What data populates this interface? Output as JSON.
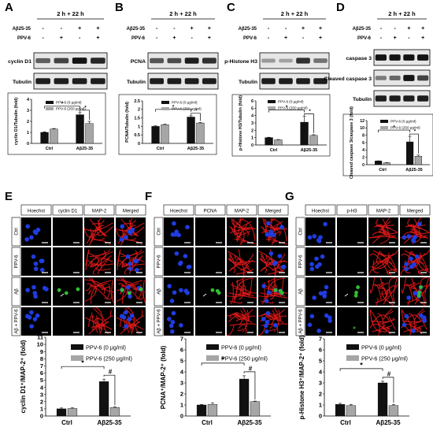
{
  "panel_letters": [
    "A",
    "B",
    "C",
    "D",
    "E",
    "F",
    "G"
  ],
  "blots": [
    {
      "timepoint": "2 h + 22 h",
      "treat_labels": [
        "Aβ25-35",
        "PPV-6"
      ],
      "signs": [
        [
          "-",
          "-",
          "+",
          "+"
        ],
        [
          "-",
          "+",
          "-",
          "+"
        ]
      ],
      "rows": [
        {
          "label": "cyclin D1",
          "intensity": [
            0.55,
            0.7,
            0.95,
            0.85
          ]
        },
        {
          "label": "Tubulin",
          "intensity": [
            0.9,
            0.9,
            0.9,
            0.9
          ]
        }
      ]
    },
    {
      "timepoint": "2 h + 22 h",
      "treat_labels": [
        "Aβ25-35",
        "PPV-6"
      ],
      "signs": [
        [
          "-",
          "-",
          "+",
          "+"
        ],
        [
          "-",
          "+",
          "-",
          "+"
        ]
      ],
      "rows": [
        {
          "label": "PCNA",
          "intensity": [
            0.6,
            0.65,
            0.9,
            0.8
          ]
        },
        {
          "label": "Tubulin",
          "intensity": [
            0.9,
            0.9,
            0.9,
            0.9
          ]
        }
      ]
    },
    {
      "timepoint": "2 h + 22 h",
      "treat_labels": [
        "Aβ25-35",
        "PPV-6"
      ],
      "signs": [
        [
          "-",
          "-",
          "+",
          "+"
        ],
        [
          "-",
          "+",
          "-",
          "+"
        ]
      ],
      "rows": [
        {
          "label": "p-Histone H3",
          "intensity": [
            0.25,
            0.2,
            0.8,
            0.45
          ]
        },
        {
          "label": "Tubulin",
          "intensity": [
            0.9,
            0.9,
            0.9,
            0.9
          ]
        }
      ]
    },
    {
      "timepoint": "2 h + 22 h",
      "treat_labels": [
        "Aβ25-35",
        "PPV-6"
      ],
      "signs": [
        [
          "-",
          "-",
          "+",
          "+"
        ],
        [
          "-",
          "+",
          "-",
          "+"
        ]
      ],
      "rows": [
        {
          "label": "caspase 3",
          "intensity": [
            0.95,
            0.95,
            0.95,
            0.95
          ]
        },
        {
          "label": "Cleaved caspase 3",
          "intensity": [
            0.4,
            0.5,
            0.95,
            0.7
          ]
        },
        {
          "label": "Tubulin",
          "intensity": [
            0.9,
            0.9,
            0.9,
            0.9
          ]
        }
      ]
    }
  ],
  "micro": [
    {
      "cols": [
        "Hoechst",
        "cyclin D1",
        "MAP-2",
        "Merged"
      ]
    },
    {
      "cols": [
        "Hoechst",
        "PCNA",
        "MAP-2",
        "Merged"
      ]
    },
    {
      "cols": [
        "Hoechst",
        "p-H3",
        "MAP-2",
        "Merged"
      ]
    }
  ],
  "micro_rows": [
    "Ctrl",
    "PPV-6",
    "Aβ",
    "Aβ + PPV-6"
  ],
  "colors": {
    "black_bar": "#111111",
    "gray_bar": "#a6a6a6",
    "nucleus": "#1f3de0",
    "neurite": "#e01818",
    "marker": "#2fbf2f"
  },
  "chart_data": [
    {
      "type": "bar",
      "categories": [
        "Ctrl",
        "Aβ25-35"
      ],
      "series": [
        {
          "name": "PPV-6 (0 μg/ml)",
          "values": [
            1.0,
            2.6
          ],
          "errors": [
            0.05,
            0.2
          ]
        },
        {
          "name": "PPV-6 (250 μg/ml)",
          "values": [
            1.3,
            1.8
          ],
          "errors": [
            0.05,
            0.2
          ]
        }
      ],
      "ylabel": "cyclin D1/Tubulin (fold)",
      "ylim": [
        0,
        4
      ],
      "yticks": [
        "0",
        "1",
        "2",
        "3",
        "4"
      ],
      "sig": [
        {
          "from": [
            0,
            0
          ],
          "to": [
            1,
            0
          ],
          "label": "*"
        },
        {
          "from": [
            1,
            0
          ],
          "to": [
            1,
            1
          ],
          "label": "*"
        }
      ]
    },
    {
      "type": "bar",
      "categories": [
        "Ctrl",
        "Aβ25-35"
      ],
      "series": [
        {
          "name": "PPV-6 (0 μg/ml)",
          "values": [
            1.0,
            1.55
          ],
          "errors": [
            0.03,
            0.08
          ]
        },
        {
          "name": "PPV-6 (250 μg/ml)",
          "values": [
            1.1,
            1.2
          ],
          "errors": [
            0.03,
            0.03
          ]
        }
      ],
      "ylabel": "PCNA/Tubulin (fold)",
      "ylim": [
        0,
        2.5
      ],
      "yticks": [
        "0",
        "0.5",
        "1",
        "1.5",
        "2",
        "2.5"
      ],
      "sig": [
        {
          "from": [
            0,
            0
          ],
          "to": [
            1,
            0
          ],
          "label": "*"
        },
        {
          "from": [
            1,
            0
          ],
          "to": [
            1,
            1
          ],
          "label": "*"
        }
      ]
    },
    {
      "type": "bar",
      "categories": [
        "Ctrl",
        "Aβ25-35"
      ],
      "series": [
        {
          "name": "PPV-6 (0 μg/ml)",
          "values": [
            1.0,
            3.1
          ],
          "errors": [
            0.05,
            0.8
          ]
        },
        {
          "name": "PPV-6 (250 μg/ml)",
          "values": [
            0.7,
            1.3
          ],
          "errors": [
            0.05,
            0.1
          ]
        }
      ],
      "ylabel": "p-Histone H3/Tubulin (fold)",
      "ylim": [
        0,
        6
      ],
      "yticks": [
        "0",
        "1",
        "2",
        "3",
        "4",
        "5",
        "6"
      ],
      "sig": [
        {
          "from": [
            0,
            0
          ],
          "to": [
            1,
            0
          ],
          "label": "*"
        },
        {
          "from": [
            1,
            0
          ],
          "to": [
            1,
            1
          ],
          "label": "*"
        }
      ]
    },
    {
      "type": "bar",
      "categories": [
        "Ctrl",
        "Aβ25-35"
      ],
      "series": [
        {
          "name": "PPV-6 (0 μg/ml)",
          "values": [
            1.0,
            6.2
          ],
          "errors": [
            0.05,
            1.5
          ]
        },
        {
          "name": "PPV-6 (250 μg/ml)",
          "values": [
            0.5,
            2.3
          ],
          "errors": [
            0.05,
            0.3
          ]
        }
      ],
      "ylabel": "Cleaved caspase 3/caspase 3 (fold)",
      "ylim": [
        0,
        12
      ],
      "yticks": [
        "0",
        "2",
        "4",
        "6",
        "8",
        "10",
        "12"
      ],
      "sig": [
        {
          "from": [
            0,
            0
          ],
          "to": [
            1,
            0
          ],
          "label": "*"
        },
        {
          "from": [
            1,
            0
          ],
          "to": [
            1,
            1
          ],
          "label": "*"
        }
      ]
    },
    {
      "type": "bar",
      "categories": [
        "Ctrl",
        "Aβ25-35"
      ],
      "series": [
        {
          "name": "PPV-6 (0 μg/ml)",
          "values": [
            1.0,
            4.8
          ],
          "errors": [
            0.12,
            0.35
          ]
        },
        {
          "name": "PPV-6 (250 μg/ml)",
          "values": [
            1.05,
            1.2
          ],
          "errors": [
            0.1,
            0.08
          ]
        }
      ],
      "ylabel": "cyclin D1⁺/MAP-2⁺ (fold)",
      "ylim": [
        0,
        11
      ],
      "yticks": [
        "0",
        "1",
        "2",
        "3",
        "4",
        "5",
        "6",
        "7",
        "8",
        "9",
        "10",
        "11"
      ],
      "sig": [
        {
          "from": [
            0,
            0
          ],
          "to": [
            1,
            0
          ],
          "label": "*"
        },
        {
          "from": [
            1,
            0
          ],
          "to": [
            1,
            1
          ],
          "label": "#"
        }
      ]
    },
    {
      "type": "bar",
      "categories": [
        "Ctrl",
        "Aβ25-35"
      ],
      "series": [
        {
          "name": "PPV-6 (0 μg/ml)",
          "values": [
            1.0,
            3.35
          ],
          "errors": [
            0.05,
            0.3
          ]
        },
        {
          "name": "PPV-6 (250 μg/ml)",
          "values": [
            1.05,
            1.3
          ],
          "errors": [
            0.15,
            0.05
          ]
        }
      ],
      "ylabel": "PCNA⁺/MAP-2⁺ (fold)",
      "ylim": [
        0,
        7
      ],
      "yticks": [
        "0",
        "1",
        "2",
        "3",
        "4",
        "5",
        "6",
        "7"
      ],
      "sig": [
        {
          "from": [
            0,
            0
          ],
          "to": [
            1,
            0
          ],
          "label": "*"
        },
        {
          "from": [
            1,
            0
          ],
          "to": [
            1,
            1
          ],
          "label": "#"
        }
      ]
    },
    {
      "type": "bar",
      "categories": [
        "Ctrl",
        "Aβ25-35"
      ],
      "series": [
        {
          "name": "PPV-6 (0 μg/ml)",
          "values": [
            1.05,
            3.0
          ],
          "errors": [
            0.1,
            0.15
          ]
        },
        {
          "name": "PPV-6 (250 μg/ml)",
          "values": [
            0.95,
            0.95
          ],
          "errors": [
            0.1,
            0.1
          ]
        }
      ],
      "ylabel": "p-Histone H3⁺/MAP-2⁺ (fold)",
      "ylim": [
        0,
        7
      ],
      "yticks": [
        "0",
        "1",
        "2",
        "3",
        "4",
        "5",
        "6",
        "7"
      ],
      "sig": [
        {
          "from": [
            0,
            0
          ],
          "to": [
            1,
            0
          ],
          "label": "*"
        },
        {
          "from": [
            1,
            0
          ],
          "to": [
            1,
            1
          ],
          "label": "#"
        }
      ]
    }
  ]
}
